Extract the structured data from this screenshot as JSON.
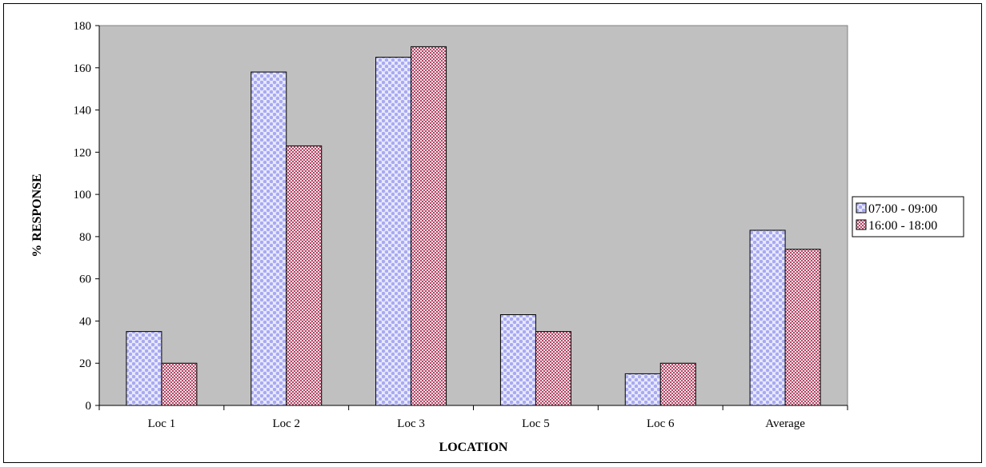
{
  "chart_data": {
    "type": "bar",
    "title": "",
    "xlabel": "LOCATION",
    "ylabel": "% RESPONSE",
    "categories": [
      "Loc 1",
      "Loc 2",
      "Loc 3",
      "Loc 5",
      "Loc 6",
      "Average"
    ],
    "series": [
      {
        "name": "07:00 - 09:00",
        "values": [
          35,
          158,
          165,
          43,
          15,
          83
        ],
        "color": "#a9aaf0",
        "pattern": "dots"
      },
      {
        "name": "16:00 - 18:00",
        "values": [
          20,
          123,
          170,
          35,
          20,
          74
        ],
        "color": "#b34766",
        "pattern": "checker"
      }
    ],
    "ylim": [
      0,
      180
    ],
    "yticks": [
      0,
      20,
      40,
      60,
      80,
      100,
      120,
      140,
      160,
      180
    ],
    "grid": false,
    "plot_background": "#c0c0c0",
    "legend_position": "right"
  }
}
